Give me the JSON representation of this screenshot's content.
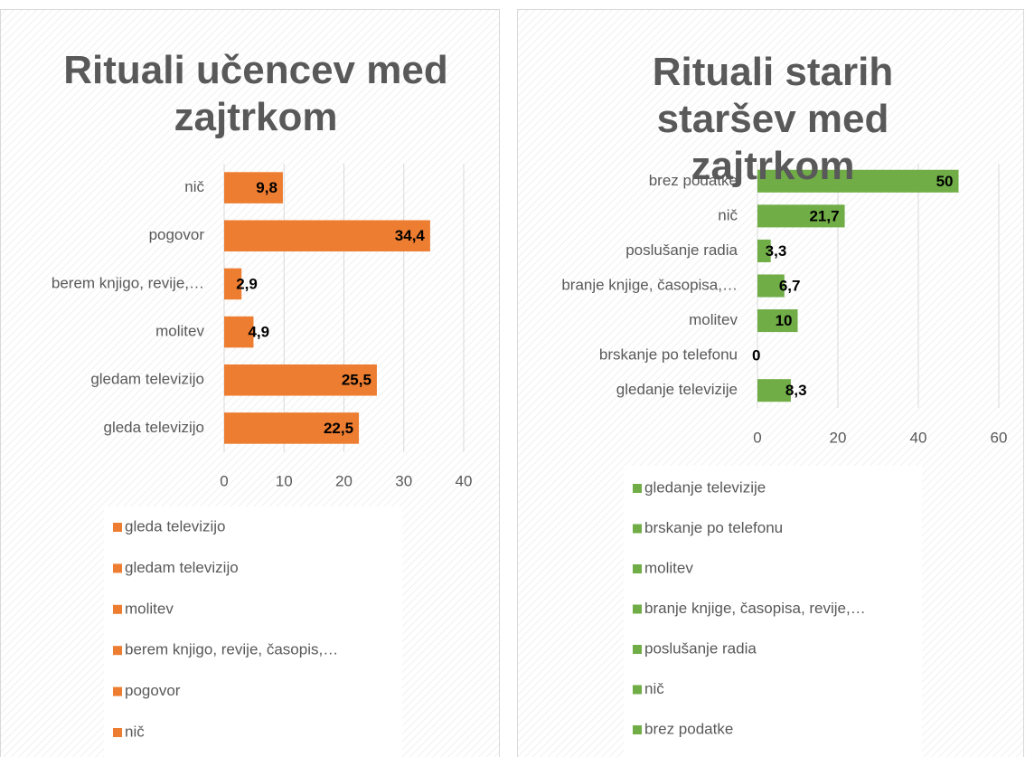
{
  "chart_data": [
    {
      "type": "bar",
      "orientation": "horizontal",
      "title": "Rituali učencev med zajtrkom",
      "categories": [
        "gleda televizijo",
        "gledam televizijo",
        "molitev",
        "berem knjigo, revije,…",
        "pogovor",
        "nič"
      ],
      "values": [
        22.5,
        25.5,
        4.9,
        2.9,
        34.4,
        9.8
      ],
      "value_labels": [
        "22,5",
        "25,5",
        "4,9",
        "2,9",
        "34,4",
        "9,8"
      ],
      "legend": [
        "gleda televizijo",
        "gledam televizijo",
        "molitev",
        "berem knjigo, revije, časopis,…",
        "pogovor",
        "nič"
      ],
      "color": "#ed7d31",
      "xlim": [
        0,
        40
      ],
      "xticks": [
        0,
        10,
        20,
        30,
        40
      ],
      "grid": true
    },
    {
      "type": "bar",
      "orientation": "horizontal",
      "title": "Rituali starih staršev med zajtrkom",
      "categories": [
        "gledanje televizije",
        "brskanje po telefonu",
        "molitev",
        "branje knjige, časopisa,…",
        "poslušanje radia",
        "nič",
        "brez podatke"
      ],
      "values": [
        8.3,
        0,
        10,
        6.7,
        3.3,
        21.7,
        50
      ],
      "value_labels": [
        "8,3",
        "0",
        "10",
        "6,7",
        "3,3",
        "21,7",
        "50"
      ],
      "legend": [
        "gledanje televizije",
        "brskanje po telefonu",
        "molitev",
        "branje knjige, časopisa, revije,…",
        "poslušanje radia",
        "nič",
        "brez podatke"
      ],
      "color": "#70ad47",
      "xlim": [
        0,
        60
      ],
      "xticks": [
        0,
        20,
        40,
        60
      ],
      "grid": true
    }
  ]
}
